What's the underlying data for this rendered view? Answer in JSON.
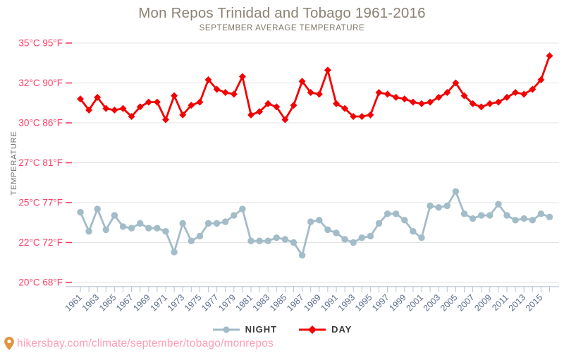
{
  "page": {
    "title": "Mon Repos Trinidad and Tobago 1961-2016",
    "subtitle": "SEPTEMBER AVERAGE TEMPERATURE",
    "watermark": "hikersbay.com/climate/september/tobago/monrepos"
  },
  "colors": {
    "day_line": "#f20202",
    "night_line": "#a2bcc8",
    "y_axis_labels_pink": "#fa3c64",
    "x_axis_labels": "#5e6c90",
    "axis_line": "#b6c2da",
    "gridline": "#e3e3e3",
    "legend_text": "#3a3a3a",
    "watermark_pink": "#fe9db6",
    "pin_icon": "#e0953e"
  },
  "chart_data": {
    "type": "line",
    "title": "Mon Repos Trinidad and Tobago 1961-2016",
    "subtitle": "SEPTEMBER AVERAGE TEMPERATURE",
    "ylabel": "TEMPERATURE",
    "xlabel": "",
    "grid": "horizontal",
    "legend_position": "bottom",
    "y_axis": {
      "range_c": [
        20,
        35
      ],
      "tick_labels": [
        "35°C 95°F",
        "32°C 90°F",
        "30°C 86°F",
        "27°C 81°F",
        "25°C 77°F",
        "22°C 72°F",
        "20°C 68°F"
      ]
    },
    "x": [
      1961,
      1962,
      1963,
      1964,
      1965,
      1966,
      1967,
      1968,
      1969,
      1970,
      1971,
      1972,
      1973,
      1974,
      1975,
      1976,
      1977,
      1978,
      1979,
      1980,
      1981,
      1982,
      1983,
      1984,
      1985,
      1986,
      1987,
      1988,
      1989,
      1990,
      1991,
      1992,
      1993,
      1994,
      1995,
      1996,
      1997,
      1998,
      1999,
      2000,
      2001,
      2002,
      2003,
      2004,
      2005,
      2006,
      2007,
      2008,
      2009,
      2010,
      2011,
      2012,
      2013,
      2014,
      2015,
      2016
    ],
    "x_labeled_ticks": [
      1961,
      1963,
      1965,
      1967,
      1969,
      1971,
      1973,
      1975,
      1977,
      1979,
      1981,
      1983,
      1985,
      1987,
      1989,
      1991,
      1993,
      1995,
      1997,
      1999,
      2001,
      2003,
      2005,
      2007,
      2009,
      2011,
      2013,
      2015
    ],
    "series": [
      {
        "name": "NIGHT",
        "marker": "circle",
        "color": "#a2bcc8",
        "values": [
          24.4,
          23.2,
          24.6,
          23.3,
          24.2,
          23.5,
          23.4,
          23.7,
          23.4,
          23.4,
          23.2,
          21.9,
          23.7,
          22.6,
          22.9,
          23.7,
          23.7,
          23.8,
          24.2,
          24.6,
          22.6,
          22.6,
          22.6,
          22.8,
          22.7,
          22.5,
          21.7,
          23.8,
          23.9,
          23.3,
          23.1,
          22.7,
          22.5,
          22.8,
          22.9,
          23.7,
          24.3,
          24.3,
          23.9,
          23.2,
          22.8,
          24.8,
          24.7,
          24.8,
          25.7,
          24.3,
          24.0,
          24.2,
          24.2,
          24.9,
          24.2,
          23.9,
          24.0,
          23.9,
          24.3,
          24.1
        ]
      },
      {
        "name": "DAY",
        "marker": "diamond",
        "color": "#f20202",
        "values": [
          31.5,
          30.8,
          31.6,
          30.9,
          30.8,
          30.9,
          30.4,
          31.0,
          31.3,
          31.3,
          30.2,
          31.7,
          30.5,
          31.1,
          31.3,
          32.7,
          32.1,
          31.9,
          31.8,
          32.9,
          30.5,
          30.7,
          31.2,
          31.0,
          30.2,
          31.1,
          32.6,
          31.9,
          31.8,
          33.3,
          31.2,
          30.9,
          30.4,
          30.4,
          30.5,
          31.9,
          31.8,
          31.6,
          31.5,
          31.3,
          31.2,
          31.3,
          31.6,
          31.9,
          32.5,
          31.7,
          31.2,
          31.0,
          31.2,
          31.3,
          31.6,
          31.9,
          31.8,
          32.1,
          32.7,
          34.2
        ]
      }
    ]
  }
}
